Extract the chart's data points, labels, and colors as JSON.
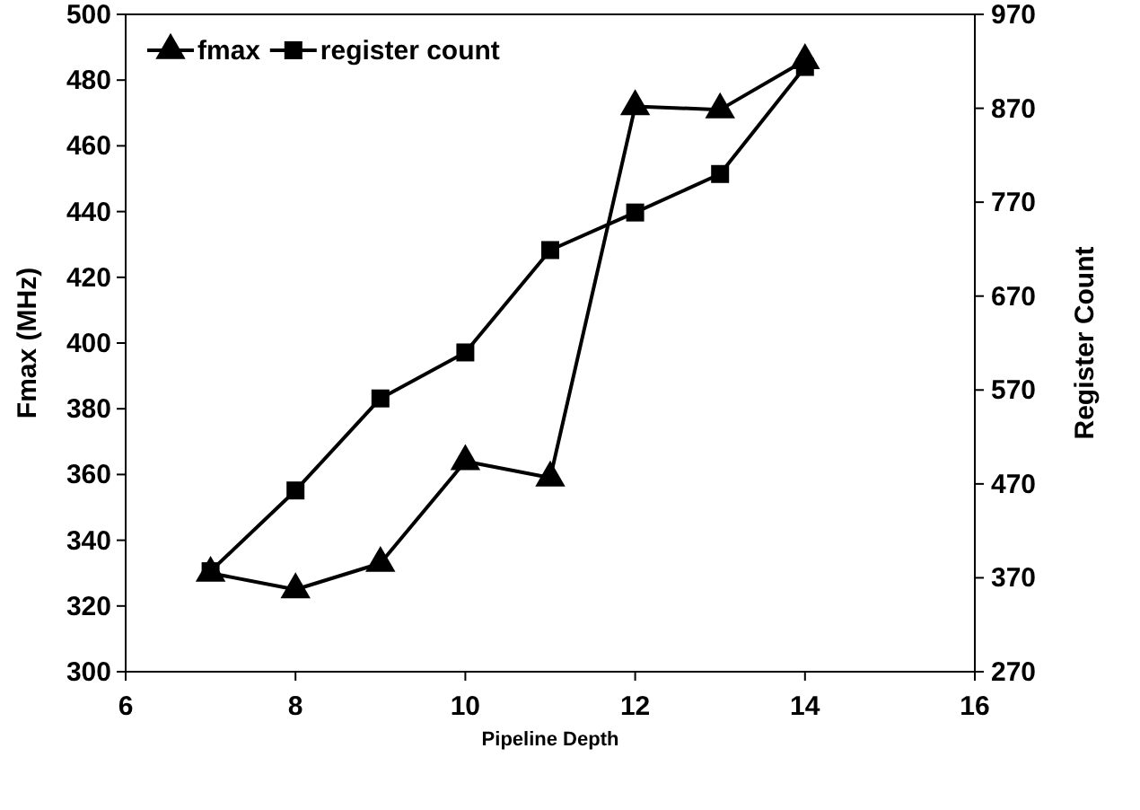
{
  "chart_data": {
    "type": "line",
    "xlabel": "Pipeline Depth",
    "ylabel": "Fmax (MHz)",
    "y2label": "Register Count",
    "x": [
      7,
      8,
      9,
      10,
      11,
      12,
      13,
      14
    ],
    "xlim": [
      6,
      16
    ],
    "xticks": [
      6,
      8,
      10,
      12,
      14,
      16
    ],
    "ylim": [
      300,
      500
    ],
    "yticks": [
      300,
      320,
      340,
      360,
      380,
      400,
      420,
      440,
      460,
      480,
      500
    ],
    "y2lim": [
      270,
      970
    ],
    "y2ticks": [
      270,
      370,
      470,
      570,
      670,
      770,
      870,
      970
    ],
    "legend": "top left",
    "grid": false,
    "series": [
      {
        "name": "fmax",
        "color": "#000000",
        "marker": "triangle",
        "values": [
          330,
          325,
          333,
          364,
          359,
          472,
          471,
          486
        ]
      },
      {
        "name": "register count",
        "color": "#000000",
        "marker": "square",
        "axis": "y2",
        "values": [
          377,
          463,
          561,
          610,
          719,
          759,
          800,
          914
        ]
      }
    ]
  }
}
